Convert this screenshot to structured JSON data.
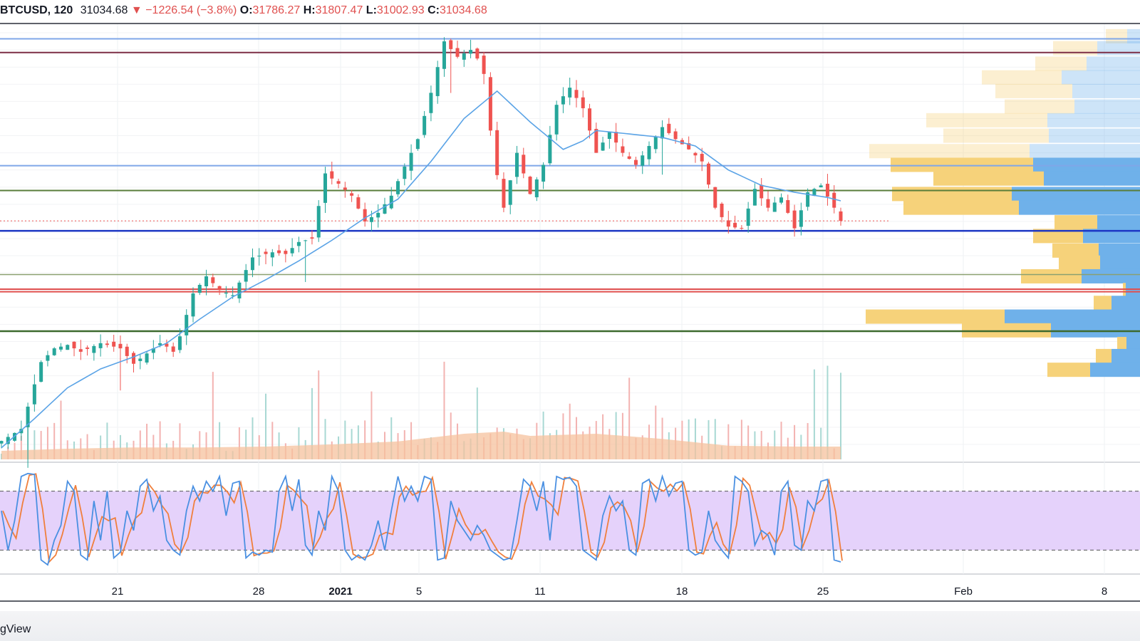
{
  "legend": {
    "symbol": "BTCUSD",
    "interval": "120",
    "last": "31034.68",
    "change_arrow": "▼",
    "change": "−1226.54 (−3.8%)",
    "open_label": "O:",
    "open": "31786.27",
    "high_label": "H:",
    "high": "31807.47",
    "low_label": "L:",
    "low": "31002.93",
    "close_label": "C:",
    "close": "31034.68"
  },
  "brand": "gView",
  "colors": {
    "up": "#26a69a",
    "down": "#ef5350",
    "ma": "#5aa3e6",
    "stoch_k": "#4a90e2",
    "stoch_d": "#f07f3c",
    "stoch_band": "#e5d2fb",
    "volume_ma": "#f5c29e",
    "vp_up": "#f6d27a",
    "vp_down": "#6fb1ea"
  },
  "chart_data": {
    "type": "candlestick",
    "x_ticks": [
      "21",
      "28",
      "2021",
      "5",
      "11",
      "18",
      "25",
      "Feb",
      "8"
    ],
    "price_axis": {
      "min": 17000,
      "max": 42500
    },
    "price_path": [
      [
        0,
        18200
      ],
      [
        3,
        18900
      ],
      [
        6,
        22800
      ],
      [
        8,
        23600
      ],
      [
        10,
        23800
      ],
      [
        12,
        23400
      ],
      [
        15,
        23900
      ],
      [
        18,
        23600
      ],
      [
        20,
        22700
      ],
      [
        22,
        23300
      ],
      [
        24,
        23900
      ],
      [
        25,
        23700
      ],
      [
        26,
        23400
      ],
      [
        27,
        24300
      ],
      [
        29,
        26800
      ],
      [
        31,
        27800
      ],
      [
        33,
        27000
      ],
      [
        35,
        26700
      ],
      [
        38,
        28900
      ],
      [
        41,
        29200
      ],
      [
        43,
        29100
      ],
      [
        45,
        29800
      ],
      [
        47,
        30000
      ],
      [
        49,
        33800
      ],
      [
        51,
        33200
      ],
      [
        53,
        32500
      ],
      [
        55,
        31000
      ],
      [
        57,
        31500
      ],
      [
        59,
        32500
      ],
      [
        61,
        34200
      ],
      [
        63,
        35800
      ],
      [
        65,
        38500
      ],
      [
        67,
        41500
      ],
      [
        69,
        40600
      ],
      [
        71,
        41000
      ],
      [
        72,
        40500
      ],
      [
        73,
        39600
      ],
      [
        74,
        36300
      ],
      [
        75,
        33700
      ],
      [
        76,
        31800
      ],
      [
        78,
        35000
      ],
      [
        80,
        32600
      ],
      [
        82,
        34300
      ],
      [
        84,
        37800
      ],
      [
        86,
        38800
      ],
      [
        88,
        37600
      ],
      [
        90,
        35000
      ],
      [
        92,
        36200
      ],
      [
        94,
        35000
      ],
      [
        96,
        34300
      ],
      [
        98,
        35400
      ],
      [
        100,
        36500
      ],
      [
        102,
        35800
      ],
      [
        104,
        35200
      ],
      [
        106,
        34500
      ],
      [
        108,
        31800
      ],
      [
        110,
        30700
      ],
      [
        112,
        30600
      ],
      [
        114,
        32900
      ],
      [
        116,
        31800
      ],
      [
        118,
        32400
      ],
      [
        120,
        30600
      ],
      [
        122,
        32700
      ],
      [
        124,
        33100
      ],
      [
        126,
        31800
      ],
      [
        127,
        31034
      ]
    ],
    "ma_path": [
      [
        0,
        17800
      ],
      [
        5,
        19500
      ],
      [
        10,
        21300
      ],
      [
        15,
        22400
      ],
      [
        20,
        23100
      ],
      [
        25,
        23900
      ],
      [
        30,
        25300
      ],
      [
        35,
        26600
      ],
      [
        40,
        27600
      ],
      [
        45,
        28700
      ],
      [
        50,
        29900
      ],
      [
        55,
        31200
      ],
      [
        60,
        32300
      ],
      [
        65,
        34500
      ],
      [
        70,
        37000
      ],
      [
        75,
        38600
      ],
      [
        80,
        36800
      ],
      [
        85,
        35200
      ],
      [
        88,
        35700
      ],
      [
        90,
        36300
      ],
      [
        95,
        36100
      ],
      [
        100,
        35900
      ],
      [
        105,
        35400
      ],
      [
        110,
        34000
      ],
      [
        115,
        33100
      ],
      [
        120,
        32700
      ],
      [
        125,
        32400
      ],
      [
        127,
        32200
      ]
    ],
    "horizontal_levels": [
      {
        "price": 41650,
        "color": "#7fa7e8",
        "width": 2
      },
      {
        "price": 40850,
        "color": "#7b2d45",
        "width": 2
      },
      {
        "price": 34250,
        "color": "#7fa7e8",
        "width": 2
      },
      {
        "price": 32800,
        "color": "#5a7d3a",
        "width": 2
      },
      {
        "price": 31034,
        "color": "#ef5350",
        "width": 1,
        "dashed": true
      },
      {
        "price": 30450,
        "color": "#1c36c4",
        "width": 2.5
      },
      {
        "price": 27900,
        "color": "#8aa070",
        "width": 1.5
      },
      {
        "price": 27050,
        "color": "#e0504f",
        "width": 2
      },
      {
        "price": 26900,
        "color": "#e0504f",
        "width": 2
      },
      {
        "price": 24600,
        "color": "#3d6a2e",
        "width": 2.5
      }
    ],
    "volume_profile": [
      {
        "price": 41800,
        "up": 30,
        "down": 18
      },
      {
        "price": 41100,
        "up": 62,
        "down": 60
      },
      {
        "price": 40200,
        "up": 72,
        "down": 75
      },
      {
        "price": 39400,
        "up": 112,
        "down": 110
      },
      {
        "price": 38600,
        "up": 108,
        "down": 95
      },
      {
        "price": 37700,
        "up": 98,
        "down": 92
      },
      {
        "price": 36900,
        "up": 170,
        "down": 130
      },
      {
        "price": 36000,
        "up": 148,
        "down": 128
      },
      {
        "price": 35100,
        "up": 225,
        "down": 155
      },
      {
        "price": 34300,
        "up": 200,
        "down": 150
      },
      {
        "price": 33500,
        "up": 155,
        "down": 135
      },
      {
        "price": 32600,
        "up": 168,
        "down": 180
      },
      {
        "price": 31800,
        "up": 162,
        "down": 170
      },
      {
        "price": 30950,
        "up": 60,
        "down": 60
      },
      {
        "price": 30150,
        "up": 70,
        "down": 80
      },
      {
        "price": 29300,
        "up": 65,
        "down": 58
      },
      {
        "price": 28600,
        "up": 58,
        "down": 56
      },
      {
        "price": 27800,
        "up": 85,
        "down": 82
      },
      {
        "price": 27000,
        "up": 4,
        "down": 20
      },
      {
        "price": 26250,
        "up": 25,
        "down": 40
      },
      {
        "price": 25450,
        "up": 195,
        "down": 190
      },
      {
        "price": 24650,
        "up": 125,
        "down": 125
      },
      {
        "price": 23850,
        "up": 13,
        "down": 19
      },
      {
        "price": 23150,
        "up": 22,
        "down": 40
      },
      {
        "price": 22350,
        "up": 60,
        "down": 70
      }
    ],
    "volume_ma": [
      [
        0,
        0.2
      ],
      [
        10,
        0.25
      ],
      [
        20,
        0.28
      ],
      [
        30,
        0.28
      ],
      [
        40,
        0.3
      ],
      [
        50,
        0.35
      ],
      [
        60,
        0.42
      ],
      [
        70,
        0.6
      ],
      [
        76,
        0.65
      ],
      [
        80,
        0.55
      ],
      [
        90,
        0.6
      ],
      [
        100,
        0.48
      ],
      [
        110,
        0.32
      ],
      [
        120,
        0.3
      ],
      [
        127,
        0.3
      ]
    ],
    "stochastic": {
      "upper_band": 80,
      "lower_band": 20,
      "path": [
        [
          0,
          60
        ],
        [
          1,
          20
        ],
        [
          2,
          50
        ],
        [
          3,
          95
        ],
        [
          4,
          98
        ],
        [
          5,
          97
        ],
        [
          6,
          10
        ],
        [
          7,
          5
        ],
        [
          8,
          30
        ],
        [
          9,
          45
        ],
        [
          10,
          90
        ],
        [
          11,
          80
        ],
        [
          12,
          15
        ],
        [
          13,
          10
        ],
        [
          14,
          70
        ],
        [
          15,
          30
        ],
        [
          16,
          80
        ],
        [
          17,
          12
        ],
        [
          18,
          18
        ],
        [
          19,
          60
        ],
        [
          20,
          40
        ],
        [
          21,
          85
        ],
        [
          22,
          92
        ],
        [
          23,
          60
        ],
        [
          24,
          75
        ],
        [
          25,
          30
        ],
        [
          26,
          20
        ],
        [
          27,
          15
        ],
        [
          28,
          60
        ],
        [
          29,
          85
        ],
        [
          30,
          70
        ],
        [
          31,
          90
        ],
        [
          32,
          80
        ],
        [
          33,
          95
        ],
        [
          34,
          55
        ],
        [
          35,
          88
        ],
        [
          36,
          90
        ],
        [
          37,
          12
        ],
        [
          38,
          18
        ],
        [
          39,
          15
        ],
        [
          40,
          20
        ],
        [
          41,
          18
        ],
        [
          42,
          80
        ],
        [
          43,
          95
        ],
        [
          44,
          60
        ],
        [
          45,
          92
        ],
        [
          46,
          25
        ],
        [
          47,
          15
        ],
        [
          48,
          60
        ],
        [
          49,
          40
        ],
        [
          50,
          95
        ],
        [
          51,
          80
        ],
        [
          52,
          20
        ],
        [
          53,
          10
        ],
        [
          54,
          15
        ],
        [
          55,
          10
        ],
        [
          56,
          25
        ],
        [
          57,
          50
        ],
        [
          58,
          20
        ],
        [
          59,
          60
        ],
        [
          60,
          95
        ],
        [
          61,
          70
        ],
        [
          62,
          85
        ],
        [
          63,
          70
        ],
        [
          64,
          95
        ],
        [
          65,
          92
        ],
        [
          66,
          10
        ],
        [
          67,
          12
        ],
        [
          68,
          70
        ],
        [
          69,
          50
        ],
        [
          70,
          40
        ],
        [
          71,
          30
        ],
        [
          72,
          45
        ],
        [
          73,
          35
        ],
        [
          74,
          20
        ],
        [
          75,
          15
        ],
        [
          76,
          10
        ],
        [
          77,
          12
        ],
        [
          78,
          50
        ],
        [
          79,
          92
        ],
        [
          80,
          85
        ],
        [
          81,
          60
        ],
        [
          82,
          90
        ],
        [
          83,
          30
        ],
        [
          84,
          95
        ],
        [
          85,
          92
        ],
        [
          86,
          94
        ],
        [
          87,
          85
        ],
        [
          88,
          20
        ],
        [
          89,
          15
        ],
        [
          90,
          10
        ],
        [
          91,
          55
        ],
        [
          92,
          75
        ],
        [
          93,
          60
        ],
        [
          94,
          70
        ],
        [
          95,
          20
        ],
        [
          96,
          15
        ],
        [
          97,
          88
        ],
        [
          98,
          92
        ],
        [
          99,
          70
        ],
        [
          100,
          95
        ],
        [
          101,
          75
        ],
        [
          102,
          88
        ],
        [
          103,
          90
        ],
        [
          104,
          20
        ],
        [
          105,
          15
        ],
        [
          106,
          18
        ],
        [
          107,
          60
        ],
        [
          108,
          30
        ],
        [
          109,
          20
        ],
        [
          110,
          12
        ],
        [
          111,
          95
        ],
        [
          112,
          90
        ],
        [
          113,
          80
        ],
        [
          114,
          25
        ],
        [
          115,
          40
        ],
        [
          116,
          35
        ],
        [
          117,
          15
        ],
        [
          118,
          80
        ],
        [
          119,
          90
        ],
        [
          120,
          25
        ],
        [
          121,
          20
        ],
        [
          122,
          70
        ],
        [
          123,
          60
        ],
        [
          124,
          90
        ],
        [
          125,
          92
        ],
        [
          126,
          10
        ],
        [
          127,
          8
        ]
      ]
    }
  }
}
